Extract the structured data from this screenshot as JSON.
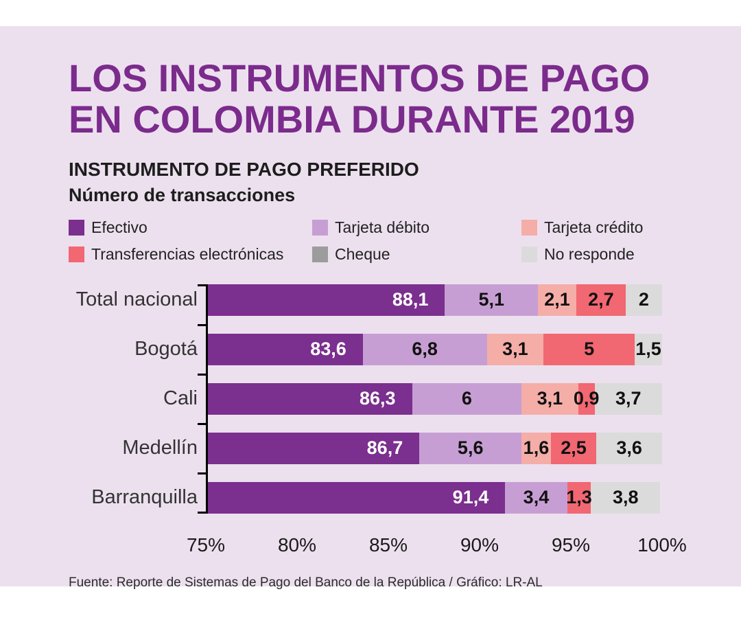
{
  "background": {
    "page": "#ffffff",
    "panel": "#ECE0EE"
  },
  "title": {
    "line1": "LOS INSTRUMENTOS DE PAGO",
    "line2": "EN COLOMBIA DURANTE 2019",
    "color": "#7B2B8C"
  },
  "subtitle": "INSTRUMENTO DE PAGO PREFERIDO",
  "subtitle2": "Número de transacciones",
  "legend": [
    {
      "label": "Efectivo",
      "color": "#7B2F8E"
    },
    {
      "label": "Tarjeta débito",
      "color": "#C79ED3"
    },
    {
      "label": "Tarjeta crédito",
      "color": "#F5ADA8"
    },
    {
      "label": "Transferencias electrónicas",
      "color": "#F16772"
    },
    {
      "label": "Cheque",
      "color": "#9C9C9C"
    },
    {
      "label": "No responde",
      "color": "#DBDBDB"
    }
  ],
  "chart_data": {
    "type": "bar",
    "orientation": "horizontal",
    "stacked": true,
    "title": "INSTRUMENTO DE PAGO PREFERIDO",
    "subtitle": "Número de transacciones",
    "axis": {
      "min": 75,
      "max": 100,
      "ticks": [
        "75%",
        "80%",
        "85%",
        "90%",
        "95%",
        "100%"
      ],
      "tick_values": [
        75,
        80,
        85,
        90,
        95,
        100
      ]
    },
    "series_names": [
      "Efectivo",
      "Tarjeta débito",
      "Tarjeta crédito",
      "Transferencias electrónicas",
      "Cheque",
      "No responde"
    ],
    "categories": [
      "Total nacional",
      "Bogotá",
      "Cali",
      "Medellín",
      "Barranquilla"
    ],
    "rows": [
      {
        "category": "Total nacional",
        "segments": [
          {
            "series": "Efectivo",
            "value": 88.1,
            "label": "88,1"
          },
          {
            "series": "Tarjeta débito",
            "value": 5.1,
            "label": "5,1"
          },
          {
            "series": "Tarjeta crédito",
            "value": 2.1,
            "label": "2,1"
          },
          {
            "series": "Transferencias electrónicas",
            "value": 2.7,
            "label": "2,7"
          },
          {
            "series": "No responde",
            "value": 2,
            "label": "2"
          }
        ]
      },
      {
        "category": "Bogotá",
        "segments": [
          {
            "series": "Efectivo",
            "value": 83.6,
            "label": "83,6"
          },
          {
            "series": "Tarjeta débito",
            "value": 6.8,
            "label": "6,8"
          },
          {
            "series": "Tarjeta crédito",
            "value": 3.1,
            "label": "3,1"
          },
          {
            "series": "Transferencias electrónicas",
            "value": 5,
            "label": "5"
          },
          {
            "series": "No responde",
            "value": 1.5,
            "label": "1,5"
          }
        ]
      },
      {
        "category": "Cali",
        "segments": [
          {
            "series": "Efectivo",
            "value": 86.3,
            "label": "86,3"
          },
          {
            "series": "Tarjeta débito",
            "value": 6,
            "label": "6"
          },
          {
            "series": "Tarjeta crédito",
            "value": 3.1,
            "label": "3,1"
          },
          {
            "series": "Transferencias electrónicas",
            "value": 0.9,
            "label": "0,9"
          },
          {
            "series": "No responde",
            "value": 3.7,
            "label": "3,7"
          }
        ]
      },
      {
        "category": "Medellín",
        "segments": [
          {
            "series": "Efectivo",
            "value": 86.7,
            "label": "86,7"
          },
          {
            "series": "Tarjeta débito",
            "value": 5.6,
            "label": "5,6"
          },
          {
            "series": "Tarjeta crédito",
            "value": 1.6,
            "label": "1,6"
          },
          {
            "series": "Transferencias electrónicas",
            "value": 2.5,
            "label": "2,5"
          },
          {
            "series": "No responde",
            "value": 3.6,
            "label": "3,6"
          }
        ]
      },
      {
        "category": "Barranquilla",
        "segments": [
          {
            "series": "Efectivo",
            "value": 91.4,
            "label": "91,4"
          },
          {
            "series": "Tarjeta débito",
            "value": 3.4,
            "label": "3,4"
          },
          {
            "series": "Transferencias electrónicas",
            "value": 1.3,
            "label": "1,3"
          },
          {
            "series": "No responde",
            "value": 3.8,
            "label": "3,8"
          }
        ]
      }
    ]
  },
  "source": "Fuente: Reporte de Sistemas de Pago del Banco de la República / Gráfico: LR-AL"
}
